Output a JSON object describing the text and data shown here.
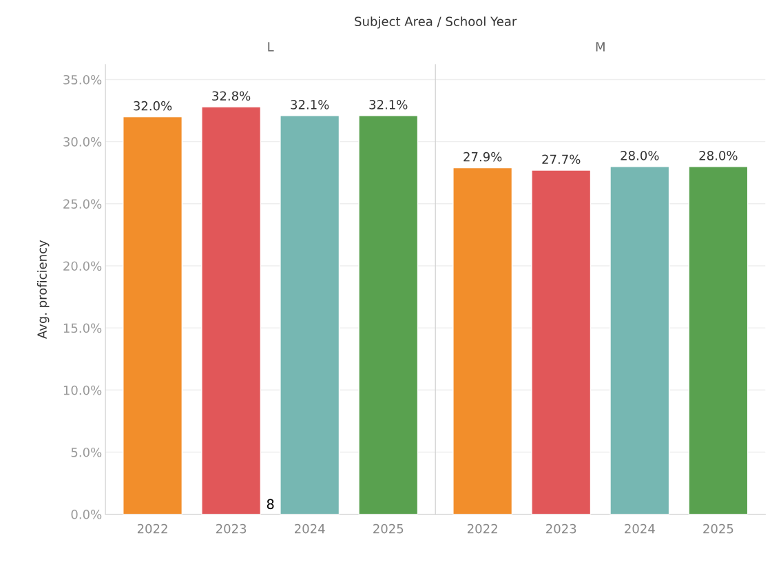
{
  "chart_data": [
    {
      "type": "bar",
      "title": "L",
      "ylabel": "Avg. proficiency",
      "annotations": [
        "Subject Area / School Year",
        "8"
      ],
      "categories": [
        "2022",
        "2023",
        "2024",
        "2025"
      ],
      "values": [
        32.0,
        32.8,
        32.1,
        32.1
      ],
      "value_labels": [
        "32.0%",
        "32.8%",
        "32.1%",
        "32.1%"
      ],
      "colors": [
        "#f28e2b",
        "#e15759",
        "#76b7b2",
        "#59a14f"
      ],
      "ylim": [
        0,
        36.2
      ],
      "yticks": [
        {
          "value": 0,
          "label": "0.0%"
        },
        {
          "value": 5,
          "label": "5.0%"
        },
        {
          "value": 10,
          "label": "10.0%"
        },
        {
          "value": 15,
          "label": "15.0%"
        },
        {
          "value": 20,
          "label": "20.0%"
        },
        {
          "value": 25,
          "label": "25.0%"
        },
        {
          "value": 30,
          "label": "30.0%"
        },
        {
          "value": 35,
          "label": "35.0%"
        }
      ],
      "grid": "y"
    },
    {
      "type": "bar",
      "title": "M",
      "categories": [
        "2022",
        "2023",
        "2024",
        "2025"
      ],
      "values": [
        27.9,
        27.7,
        28.0,
        28.0
      ],
      "value_labels": [
        "27.9%",
        "27.7%",
        "28.0%",
        "28.0%"
      ],
      "colors": [
        "#f28e2b",
        "#e15759",
        "#76b7b2",
        "#59a14f"
      ],
      "ylim": [
        0,
        36.2
      ],
      "yticks": [
        0,
        5,
        10,
        15,
        20,
        25,
        30,
        35
      ],
      "grid": "y",
      "tick_labels": "x"
    }
  ]
}
